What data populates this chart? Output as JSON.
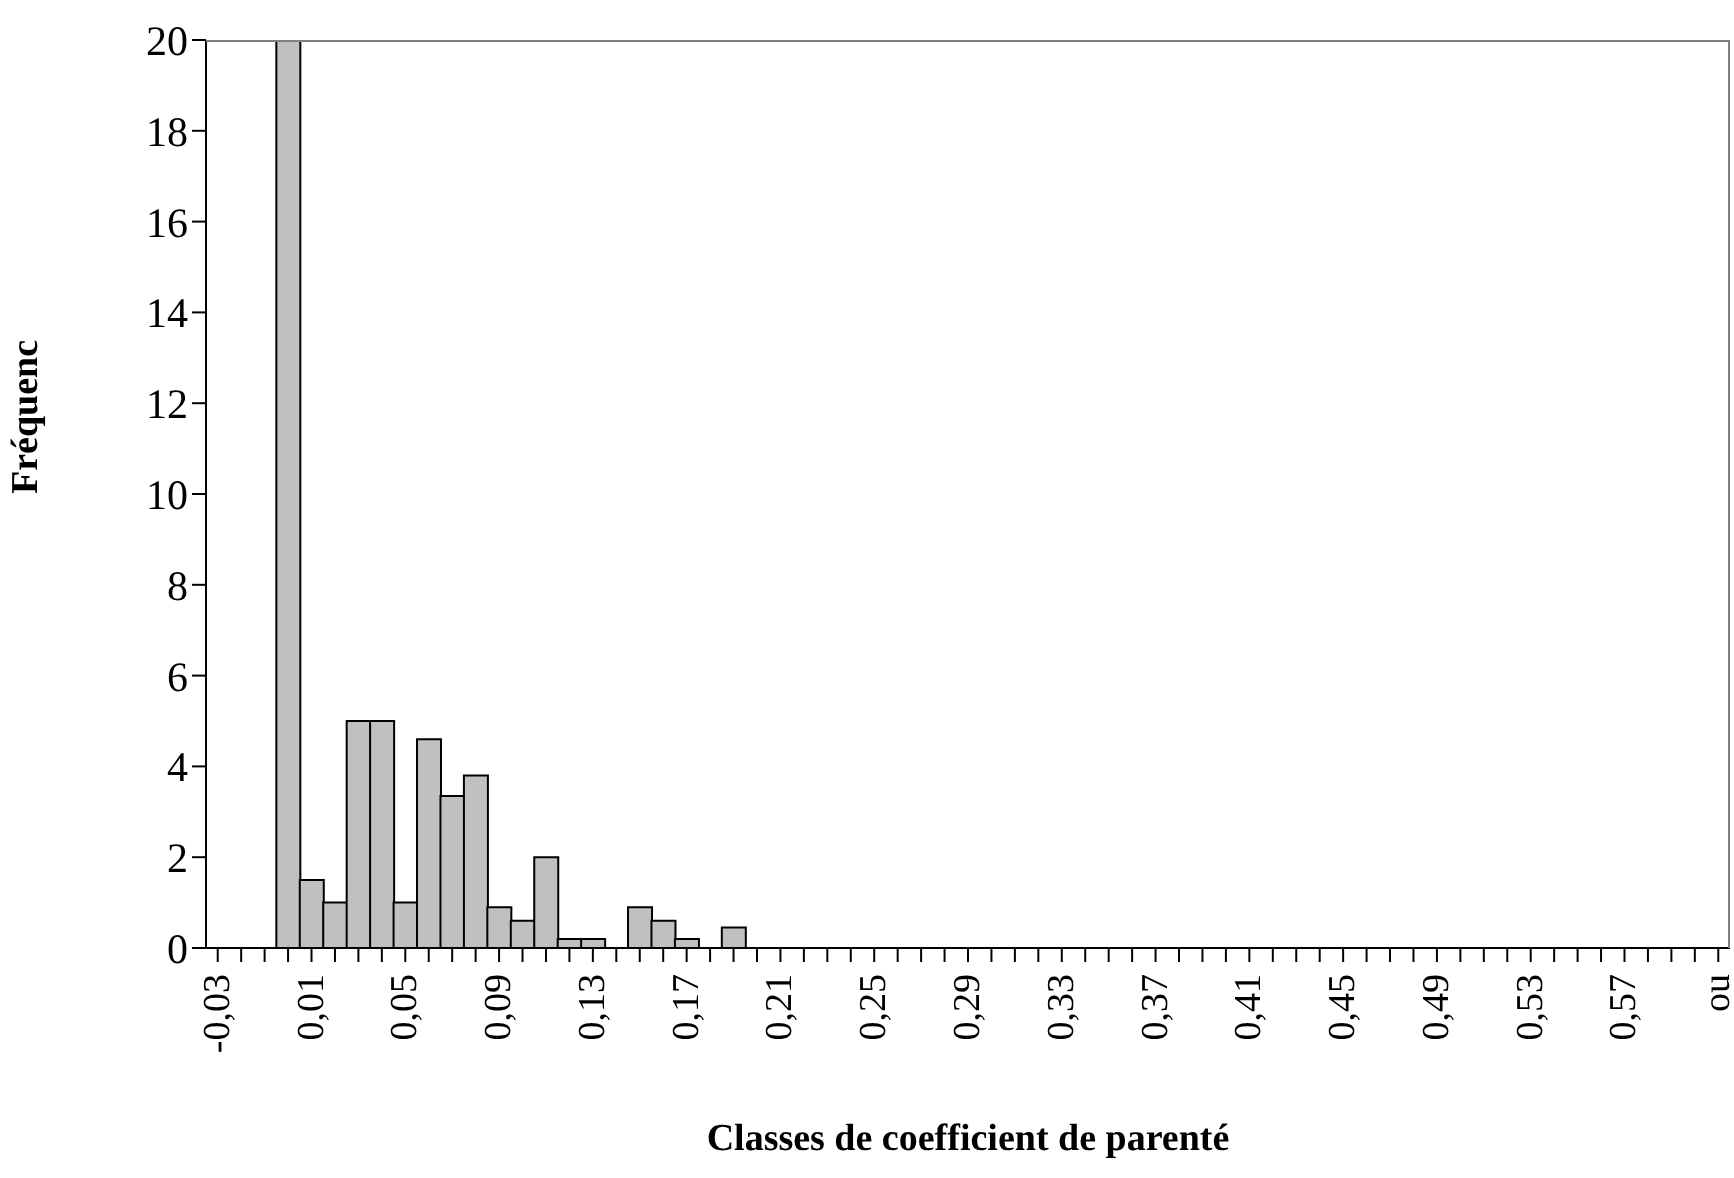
{
  "chart_data": {
    "type": "bar",
    "xlabel": "Classes de coefficient de parenté",
    "ylabel": "Fréquenc",
    "categories": [
      "-0,03",
      null,
      null,
      null,
      "0,01",
      null,
      null,
      null,
      "0,05",
      null,
      null,
      null,
      "0,09",
      null,
      null,
      null,
      "0,13",
      null,
      null,
      null,
      "0,17",
      null,
      null,
      null,
      "0,21",
      null,
      null,
      null,
      "0,25",
      null,
      null,
      null,
      "0,29",
      null,
      null,
      null,
      "0,33",
      null,
      null,
      null,
      "0,37",
      null,
      null,
      null,
      "0,41",
      null,
      null,
      null,
      "0,45",
      null,
      null,
      null,
      "0,49",
      null,
      null,
      null,
      "0,53",
      null,
      null,
      null,
      "0,57",
      null,
      null,
      null,
      "ou"
    ],
    "values": [
      0,
      0,
      0,
      20,
      1.5,
      1,
      5,
      5,
      1,
      4.6,
      3.35,
      3.8,
      0.9,
      0.6,
      2,
      0.2,
      0.2,
      0,
      0.9,
      0.6,
      0.2,
      0,
      0.45,
      0,
      0,
      0,
      0,
      0,
      0,
      0,
      0,
      0,
      0,
      0,
      0,
      0,
      0,
      0,
      0,
      0,
      0,
      0,
      0,
      0,
      0,
      0,
      0,
      0,
      0,
      0,
      0,
      0,
      0,
      0,
      0,
      0,
      0,
      0,
      0,
      0,
      0,
      0,
      0,
      0,
      0
    ],
    "color": "#c0c0c0",
    "ylim": [
      0,
      20
    ],
    "yticks": [
      0,
      2,
      4,
      6,
      8,
      10,
      12,
      14,
      16,
      18,
      20
    ]
  }
}
